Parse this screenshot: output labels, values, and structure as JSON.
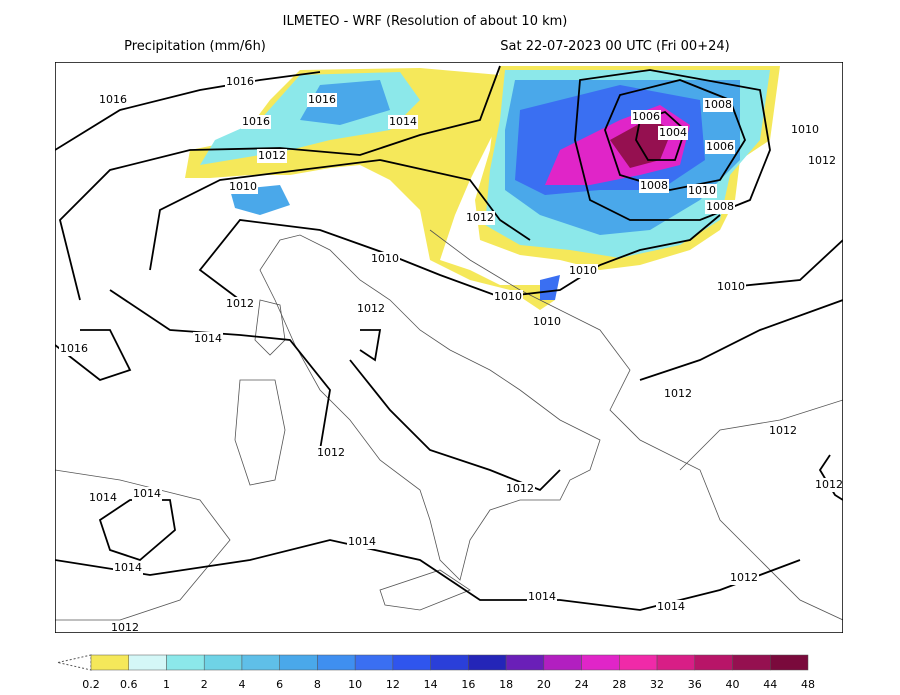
{
  "header": {
    "title": "ILMETEO - WRF (Resolution of about 10 km)",
    "left": "Precipitation (mm/6h)",
    "right": "Sat 22-07-2023 00 UTC (Fri 00+24)"
  },
  "isobar_labels": [
    "1016",
    "1016",
    "1016",
    "1016",
    "1014",
    "1012",
    "1010",
    "1006",
    "1004",
    "1008",
    "1006",
    "1010",
    "1012",
    "1008",
    "1010",
    "1008",
    "1012",
    "1010",
    "1010",
    "1010",
    "1010",
    "1010",
    "1012",
    "1012",
    "1014",
    "1016",
    "1012",
    "1012",
    "1012",
    "1012",
    "1012",
    "1014",
    "1014",
    "1014",
    "1014",
    "1014",
    "1014",
    "1012",
    "1012"
  ],
  "colorbar": {
    "labels": [
      "0.2",
      "0.6",
      "1",
      "2",
      "4",
      "6",
      "8",
      "10",
      "12",
      "14",
      "16",
      "18",
      "20",
      "24",
      "28",
      "32",
      "36",
      "40",
      "44",
      "48"
    ],
    "colors": [
      "#f5e85a",
      "#d4f7f7",
      "#8ce8ea",
      "#6fd3e6",
      "#5fbfe8",
      "#4aa8ea",
      "#3f8ff0",
      "#3a6ff2",
      "#2f55ee",
      "#2a3fd9",
      "#2425b8",
      "#6a1fb8",
      "#b21fc0",
      "#e025c8",
      "#f02aa8",
      "#d81e86",
      "#b81568",
      "#951050",
      "#7a0a3c"
    ]
  }
}
